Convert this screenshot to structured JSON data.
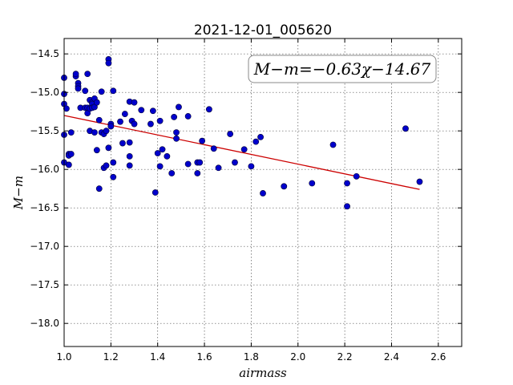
{
  "chart_data": {
    "type": "scatter",
    "title": "2021-12-01_005620",
    "xlabel": "airmass",
    "ylabel": "M−m",
    "xlim": [
      1.0,
      2.7
    ],
    "ylim": [
      -18.3,
      -14.3
    ],
    "y_inverted": true,
    "grid": true,
    "x_ticks": [
      1.0,
      1.2,
      1.4,
      1.6,
      1.8,
      2.0,
      2.2,
      2.4,
      2.6
    ],
    "x_tick_labels": [
      "1.0",
      "1.2",
      "1.4",
      "1.6",
      "1.8",
      "2.0",
      "2.2",
      "2.4",
      "2.6"
    ],
    "y_ticks": [
      -14.5,
      -15.0,
      -15.5,
      -16.0,
      -16.5,
      -17.0,
      -17.5,
      -18.0
    ],
    "y_tick_labels": [
      "−14.5",
      "−15.0",
      "−15.5",
      "−16.0",
      "−16.5",
      "−17.0",
      "−17.5",
      "−18.0"
    ],
    "annotation": "M−m=−0.63χ−14.67",
    "fit_line": {
      "x": [
        1.0,
        2.52
      ],
      "y": [
        -15.3,
        -16.26
      ],
      "color": "#cc0000"
    },
    "point_color": "#0000cc",
    "points": [
      [
        1.0,
        -14.81
      ],
      [
        1.0,
        -15.02
      ],
      [
        1.0,
        -15.15
      ],
      [
        1.0,
        -15.55
      ],
      [
        1.0,
        -15.91
      ],
      [
        1.01,
        -15.21
      ],
      [
        1.02,
        -15.8
      ],
      [
        1.02,
        -15.82
      ],
      [
        1.02,
        -15.94
      ],
      [
        1.03,
        -15.52
      ],
      [
        1.03,
        -15.8
      ],
      [
        1.05,
        -14.79
      ],
      [
        1.05,
        -14.76
      ],
      [
        1.06,
        -14.88
      ],
      [
        1.06,
        -14.92
      ],
      [
        1.06,
        -14.95
      ],
      [
        1.07,
        -15.2
      ],
      [
        1.09,
        -15.2
      ],
      [
        1.09,
        -14.98
      ],
      [
        1.1,
        -14.76
      ],
      [
        1.1,
        -15.2
      ],
      [
        1.1,
        -15.27
      ],
      [
        1.11,
        -15.5
      ],
      [
        1.11,
        -15.1
      ],
      [
        1.11,
        -15.21
      ],
      [
        1.12,
        -15.13
      ],
      [
        1.12,
        -15.15
      ],
      [
        1.12,
        -15.2
      ],
      [
        1.13,
        -15.19
      ],
      [
        1.13,
        -15.08
      ],
      [
        1.13,
        -15.52
      ],
      [
        1.14,
        -15.13
      ],
      [
        1.14,
        -15.75
      ],
      [
        1.15,
        -15.36
      ],
      [
        1.15,
        -16.25
      ],
      [
        1.16,
        -15.52
      ],
      [
        1.16,
        -14.99
      ],
      [
        1.17,
        -15.54
      ],
      [
        1.17,
        -15.98
      ],
      [
        1.18,
        -15.5
      ],
      [
        1.18,
        -15.95
      ],
      [
        1.19,
        -15.72
      ],
      [
        1.19,
        -14.57
      ],
      [
        1.19,
        -14.62
      ],
      [
        1.2,
        -15.41
      ],
      [
        1.2,
        -15.44
      ],
      [
        1.21,
        -14.98
      ],
      [
        1.21,
        -15.91
      ],
      [
        1.21,
        -16.1
      ],
      [
        1.24,
        -15.38
      ],
      [
        1.25,
        -15.66
      ],
      [
        1.26,
        -15.28
      ],
      [
        1.28,
        -15.12
      ],
      [
        1.28,
        -15.65
      ],
      [
        1.28,
        -15.95
      ],
      [
        1.28,
        -15.83
      ],
      [
        1.29,
        -15.37
      ],
      [
        1.3,
        -15.13
      ],
      [
        1.3,
        -15.41
      ],
      [
        1.33,
        -15.23
      ],
      [
        1.37,
        -15.41
      ],
      [
        1.38,
        -15.24
      ],
      [
        1.39,
        -16.3
      ],
      [
        1.4,
        -15.79
      ],
      [
        1.41,
        -15.37
      ],
      [
        1.41,
        -15.96
      ],
      [
        1.42,
        -15.74
      ],
      [
        1.44,
        -15.83
      ],
      [
        1.46,
        -16.05
      ],
      [
        1.47,
        -15.32
      ],
      [
        1.48,
        -15.52
      ],
      [
        1.48,
        -15.6
      ],
      [
        1.49,
        -15.19
      ],
      [
        1.53,
        -15.31
      ],
      [
        1.53,
        -15.93
      ],
      [
        1.57,
        -15.91
      ],
      [
        1.57,
        -16.05
      ],
      [
        1.58,
        -15.91
      ],
      [
        1.59,
        -15.63
      ],
      [
        1.62,
        -15.22
      ],
      [
        1.64,
        -15.73
      ],
      [
        1.66,
        -15.98
      ],
      [
        1.71,
        -15.54
      ],
      [
        1.73,
        -15.91
      ],
      [
        1.77,
        -15.74
      ],
      [
        1.8,
        -15.96
      ],
      [
        1.82,
        -15.64
      ],
      [
        1.84,
        -15.58
      ],
      [
        1.85,
        -16.31
      ],
      [
        1.94,
        -16.22
      ],
      [
        2.06,
        -16.18
      ],
      [
        2.15,
        -15.68
      ],
      [
        2.21,
        -16.48
      ],
      [
        2.21,
        -16.18
      ],
      [
        2.25,
        -16.09
      ],
      [
        2.46,
        -15.47
      ],
      [
        2.52,
        -16.16
      ]
    ]
  }
}
